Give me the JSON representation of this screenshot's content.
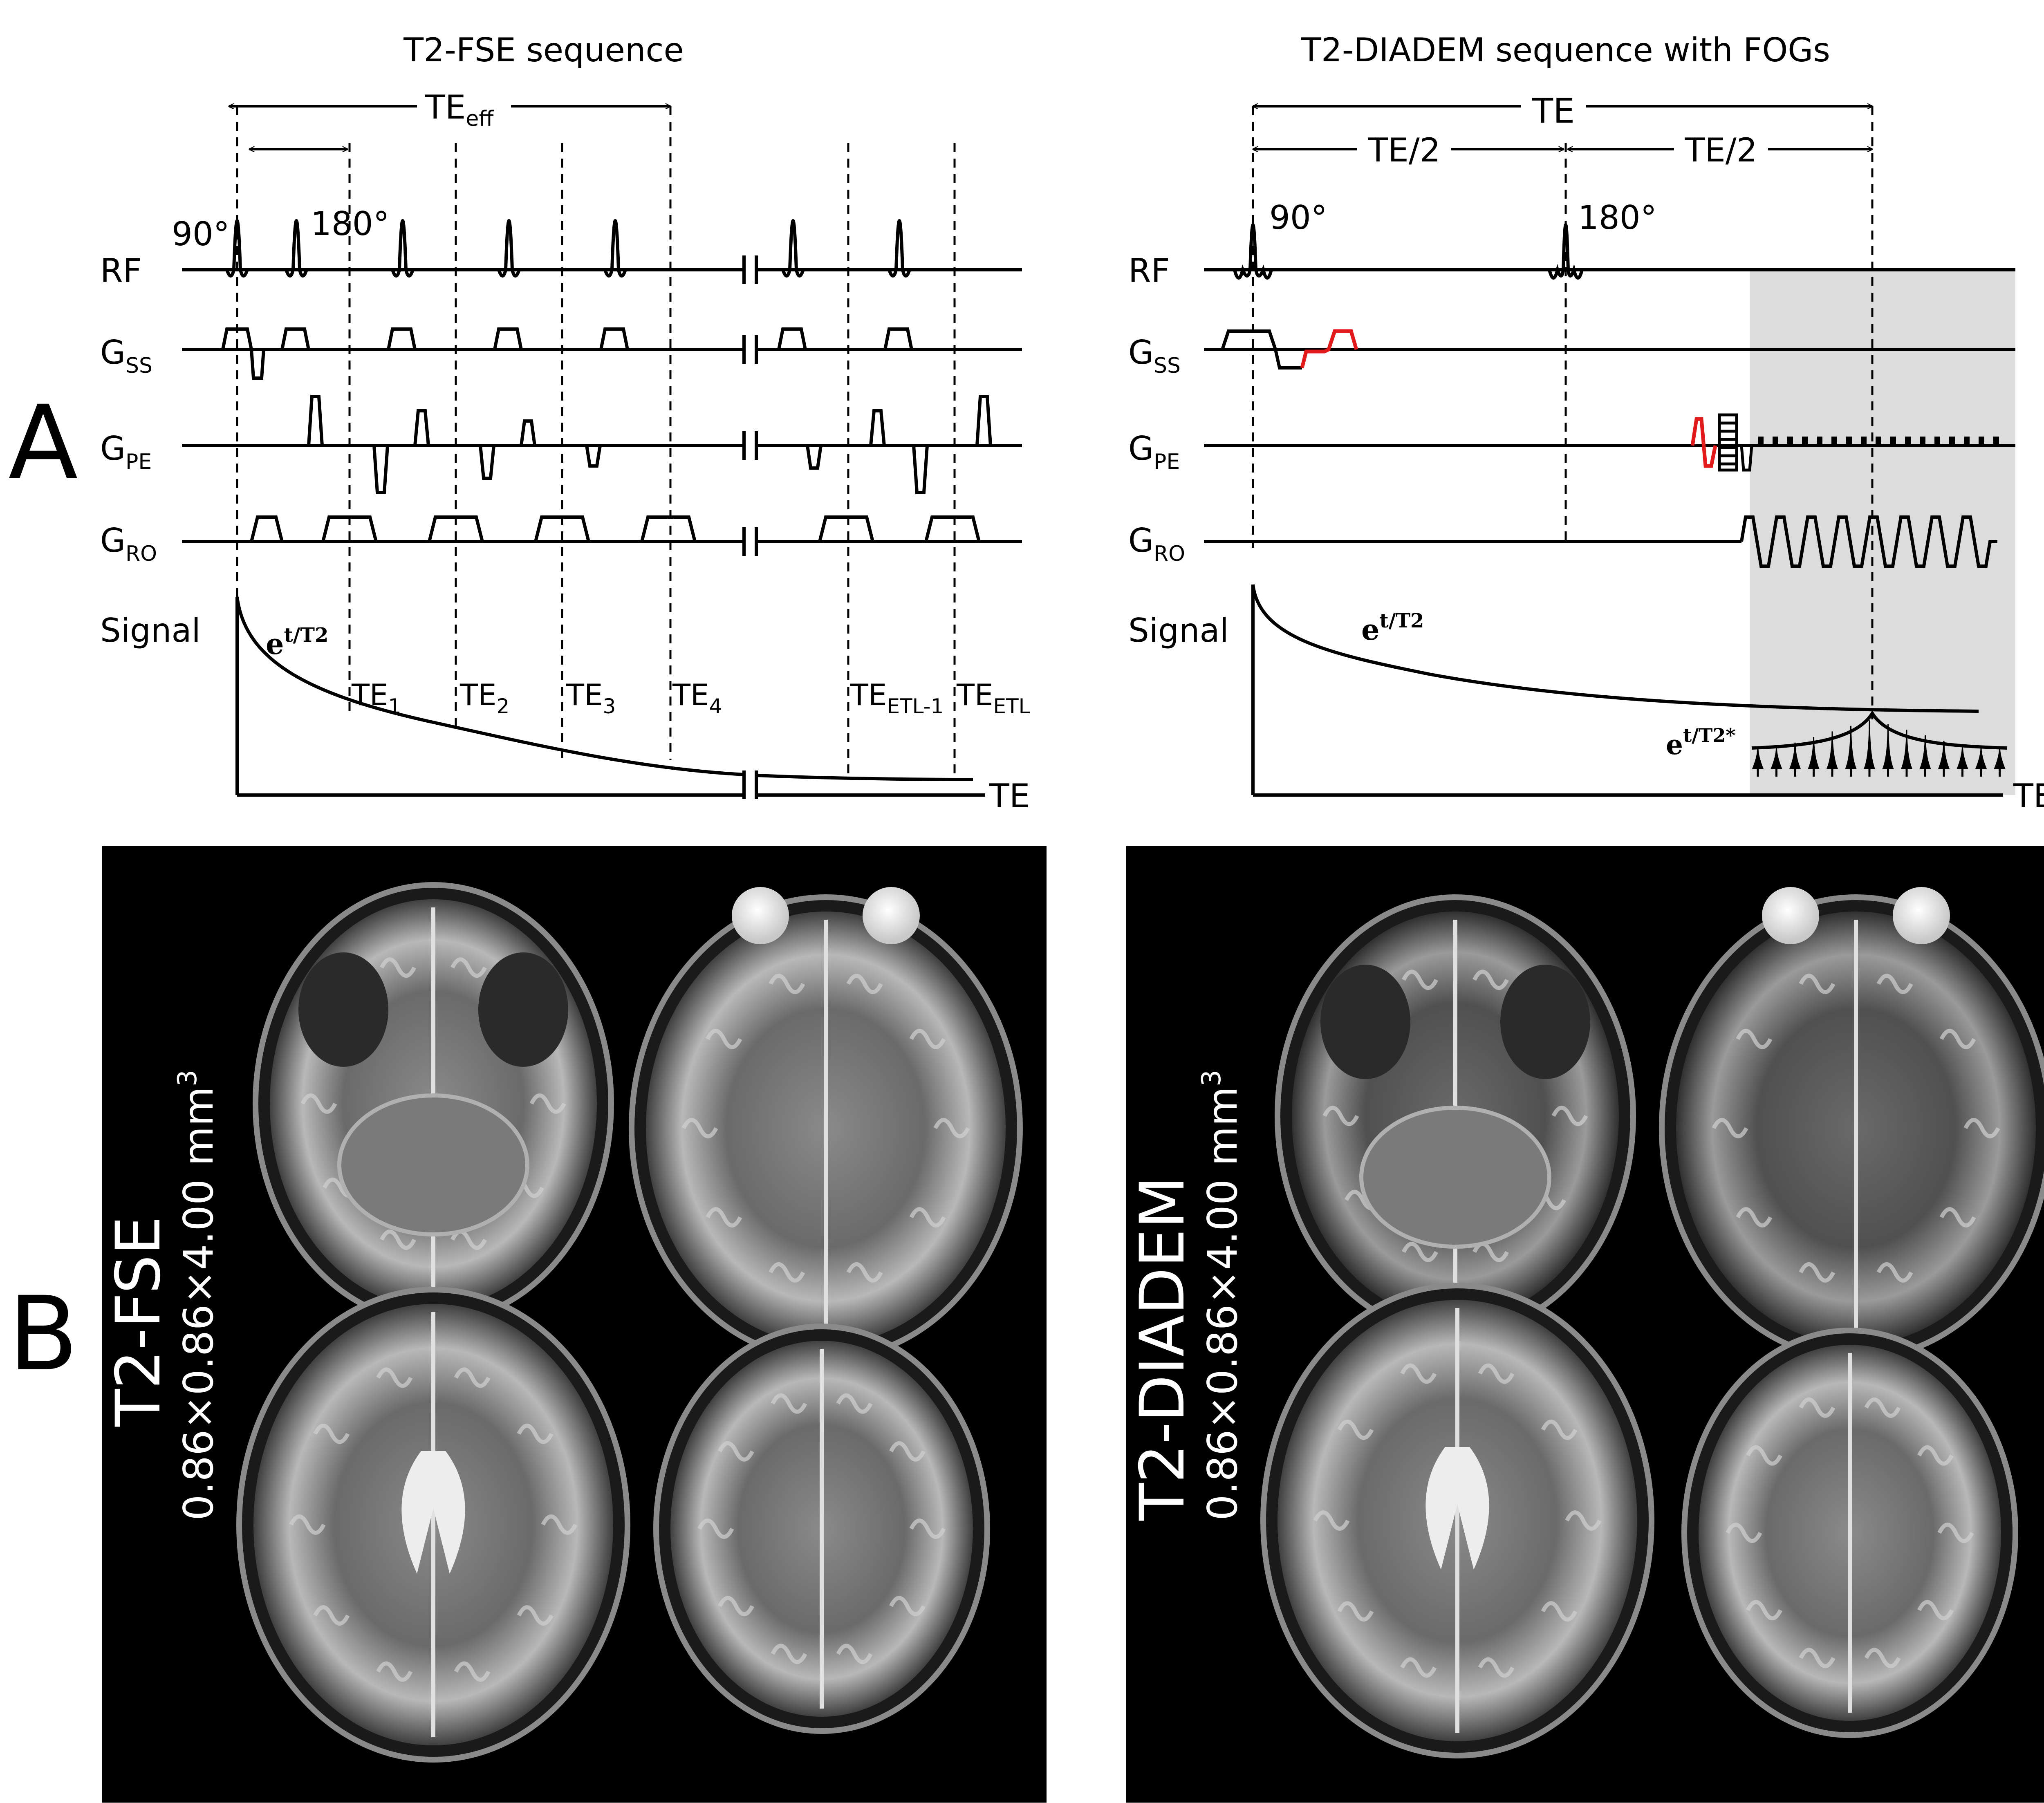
{
  "panel_labels": {
    "a": "A",
    "b": "B"
  },
  "fse": {
    "title": "T2-FSE sequence",
    "te_eff": "TE",
    "te_eff_sub": "eff",
    "angle_90": "90°",
    "angle_180": "180°",
    "rows": {
      "rf": "RF",
      "gss": "G",
      "gss_sub": "SS",
      "gpe": "G",
      "gpe_sub": "PE",
      "gro": "G",
      "gro_sub": "RO",
      "signal": "Signal"
    },
    "decay": "e",
    "decay_sup": "t/T2",
    "te_labels": [
      {
        "main": "TE",
        "sub": "1"
      },
      {
        "main": "TE",
        "sub": "2"
      },
      {
        "main": "TE",
        "sub": "3"
      },
      {
        "main": "TE",
        "sub": "4"
      },
      {
        "main": "TE",
        "sub": "ETL-1"
      },
      {
        "main": "TE",
        "sub": "ETL"
      }
    ],
    "axis": "TE"
  },
  "diadem": {
    "title": "T2-DIADEM sequence with FOGs",
    "te": "TE",
    "te_half_1": "TE/2",
    "te_half_2": "TE/2",
    "angle_90": "90°",
    "angle_180": "180°",
    "rows": {
      "rf": "RF",
      "gss": "G",
      "gss_sub": "SS",
      "gpe": "G",
      "gpe_sub": "PE",
      "gro": "G",
      "gro_sub": "RO",
      "signal": "Signal"
    },
    "decay": "e",
    "decay_sup": "t/T2",
    "decay_star": "e",
    "decay_star_sup": "t/T2*",
    "axis": "TE"
  },
  "images": {
    "fse_title": "T2-FSE",
    "fse_res": "0.86×0.86×4.00 mm",
    "fse_res_sup": "3",
    "diadem_title": "T2-DIADEM",
    "diadem_res": "0.86×0.86×4.00 mm",
    "diadem_res_sup": "3"
  },
  "colors": {
    "fog": "#e31a1c",
    "readout_shade": "#dcdcdc",
    "background_mri": "#000000"
  }
}
